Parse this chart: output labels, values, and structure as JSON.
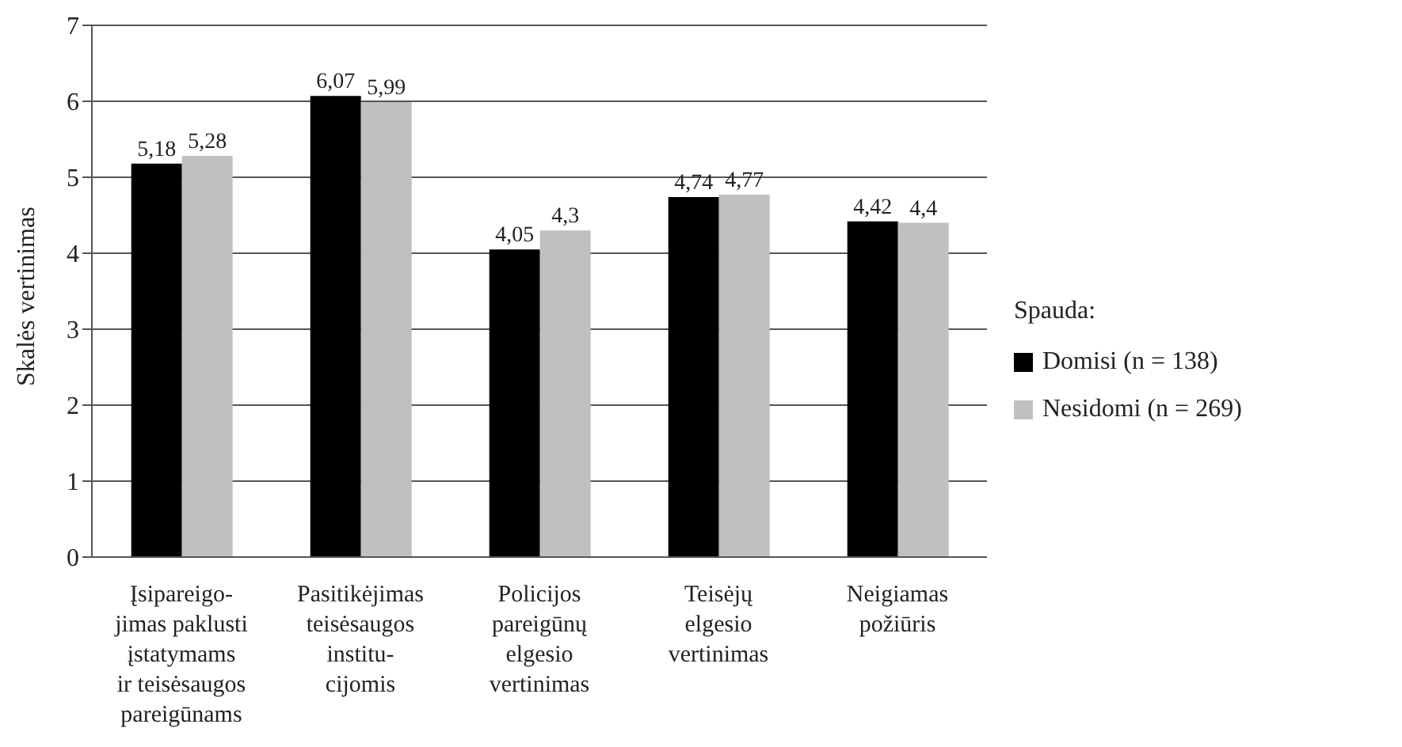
{
  "chart_data": {
    "type": "bar",
    "ylabel": "Skalės vertinimas",
    "legend_title": "Spauda:",
    "categories": [
      "Įsipareigo-\njimas paklusti\nįstatymams\nir teisėsaugos\npareigūnams",
      "Pasitikėjimas\nteisėsaugos\ninstitu-\ncijomis",
      "Policijos\npareigūnų\nelgesio\nvertinimas",
      "Teisėjų\nelgesio\nvertinimas",
      "Neigiamas\npožiūris"
    ],
    "series": [
      {
        "name": "Domisi (n = 138)",
        "color": "#000000",
        "values": [
          5.18,
          6.07,
          4.05,
          4.74,
          4.42
        ],
        "value_labels": [
          "5,18",
          "6,07",
          "4,05",
          "4,74",
          "4,42"
        ]
      },
      {
        "name": "Nesidomi (n = 269)",
        "color": "#c0c0c0",
        "values": [
          5.28,
          5.99,
          4.3,
          4.77,
          4.4
        ],
        "value_labels": [
          "5,28",
          "5,99",
          "4,3",
          "4,77",
          "4,4"
        ]
      }
    ],
    "ylim": [
      0,
      7
    ],
    "yticks": [
      0,
      1,
      2,
      3,
      4,
      5,
      6,
      7
    ],
    "grid": "y",
    "legend": "right"
  }
}
